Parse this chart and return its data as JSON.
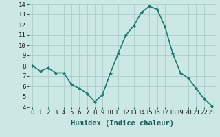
{
  "x": [
    0,
    1,
    2,
    3,
    4,
    5,
    6,
    7,
    8,
    9,
    10,
    11,
    12,
    13,
    14,
    15,
    16,
    17,
    18,
    19,
    20,
    21,
    22,
    23
  ],
  "y": [
    8.0,
    7.5,
    7.8,
    7.3,
    7.3,
    6.2,
    5.8,
    5.3,
    4.5,
    5.2,
    7.3,
    9.2,
    11.0,
    11.9,
    13.2,
    13.8,
    13.5,
    11.8,
    9.2,
    7.3,
    6.8,
    5.8,
    4.8,
    4.1
  ],
  "xlabel": "Humidex (Indice chaleur)",
  "ylim": [
    4,
    14
  ],
  "yticks": [
    4,
    5,
    6,
    7,
    8,
    9,
    10,
    11,
    12,
    13,
    14
  ],
  "xticks": [
    0,
    1,
    2,
    3,
    4,
    5,
    6,
    7,
    8,
    9,
    10,
    11,
    12,
    13,
    14,
    15,
    16,
    17,
    18,
    19,
    20,
    21,
    22,
    23
  ],
  "line_color": "#1a7a6e",
  "marker": "D",
  "marker_size": 2.0,
  "bg_color": "#cce8e4",
  "grid_color": "#aaccca",
  "xlabel_fontsize": 7.5,
  "tick_fontsize": 6.5,
  "line_width": 1.2
}
